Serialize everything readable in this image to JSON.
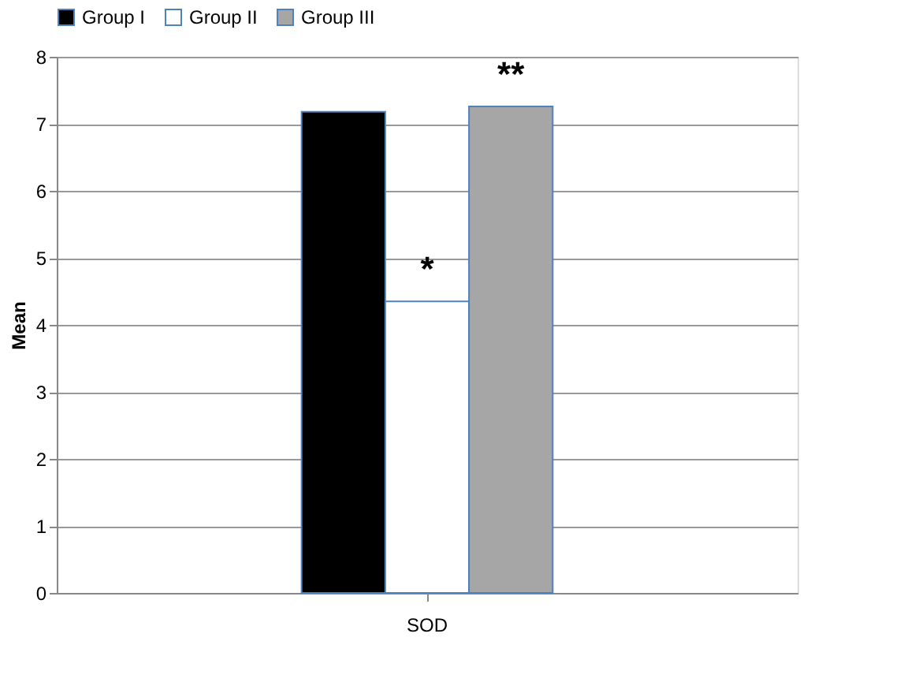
{
  "chart_data": {
    "type": "bar",
    "ylabel": "Mean",
    "categories": [
      "SOD"
    ],
    "series": [
      {
        "name": "Group I",
        "color": "#000000",
        "values": [
          7.18
        ]
      },
      {
        "name": "Group II",
        "color": "#ffffff",
        "values": [
          4.35
        ]
      },
      {
        "name": "Group III",
        "color": "#a6a6a6",
        "values": [
          7.26
        ]
      }
    ],
    "ylim": [
      0,
      8
    ],
    "yticks": [
      0,
      1,
      2,
      3,
      4,
      5,
      6,
      7,
      8
    ],
    "grid": "y",
    "legend": "top",
    "annotations": [
      "*",
      "**"
    ]
  }
}
